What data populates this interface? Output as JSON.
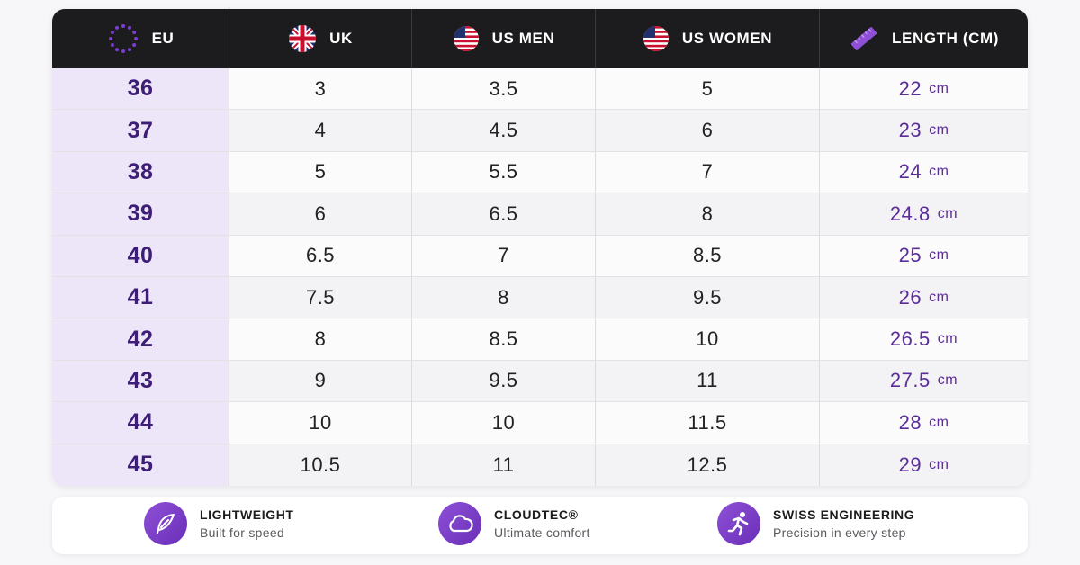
{
  "header": {
    "columns": [
      {
        "label": "EU",
        "icon": "eu-flag-icon"
      },
      {
        "label": "UK",
        "icon": "uk-flag-icon"
      },
      {
        "label": "US MEN",
        "icon": "us-flag-icon"
      },
      {
        "label": "US WOMEN",
        "icon": "us-flag-icon"
      },
      {
        "label": "LENGTH (CM)",
        "icon": "ruler-icon"
      }
    ]
  },
  "rows": [
    {
      "eu": "36",
      "uk": "3",
      "us_men": "3.5",
      "us_women": "5",
      "length": "22",
      "unit": "cm"
    },
    {
      "eu": "37",
      "uk": "4",
      "us_men": "4.5",
      "us_women": "6",
      "length": "23",
      "unit": "cm"
    },
    {
      "eu": "38",
      "uk": "5",
      "us_men": "5.5",
      "us_women": "7",
      "length": "24",
      "unit": "cm"
    },
    {
      "eu": "39",
      "uk": "6",
      "us_men": "6.5",
      "us_women": "8",
      "length": "24.8",
      "unit": "cm"
    },
    {
      "eu": "40",
      "uk": "6.5",
      "us_men": "7",
      "us_women": "8.5",
      "length": "25",
      "unit": "cm"
    },
    {
      "eu": "41",
      "uk": "7.5",
      "us_men": "8",
      "us_women": "9.5",
      "length": "26",
      "unit": "cm"
    },
    {
      "eu": "42",
      "uk": "8",
      "us_men": "8.5",
      "us_women": "10",
      "length": "26.5",
      "unit": "cm"
    },
    {
      "eu": "43",
      "uk": "9",
      "us_men": "9.5",
      "us_women": "11",
      "length": "27.5",
      "unit": "cm"
    },
    {
      "eu": "44",
      "uk": "10",
      "us_men": "10",
      "us_women": "11.5",
      "length": "28",
      "unit": "cm"
    },
    {
      "eu": "45",
      "uk": "10.5",
      "us_men": "11",
      "us_women": "12.5",
      "length": "29",
      "unit": "cm"
    }
  ],
  "features": [
    {
      "title": "LIGHTWEIGHT",
      "subtitle": "Built for speed",
      "icon": "feather-icon"
    },
    {
      "title": "CLOUDTEC®",
      "subtitle": "Ultimate comfort",
      "icon": "cloud-icon"
    },
    {
      "title": "SWISS ENGINEERING",
      "subtitle": "Precision in every step",
      "icon": "runner-icon"
    }
  ],
  "colors": {
    "header_bg": "#1c1b1d",
    "accent_purple": "#6a2fb8",
    "eu_column_bg": "#ece6f8",
    "length_text": "#5b2d9a"
  }
}
